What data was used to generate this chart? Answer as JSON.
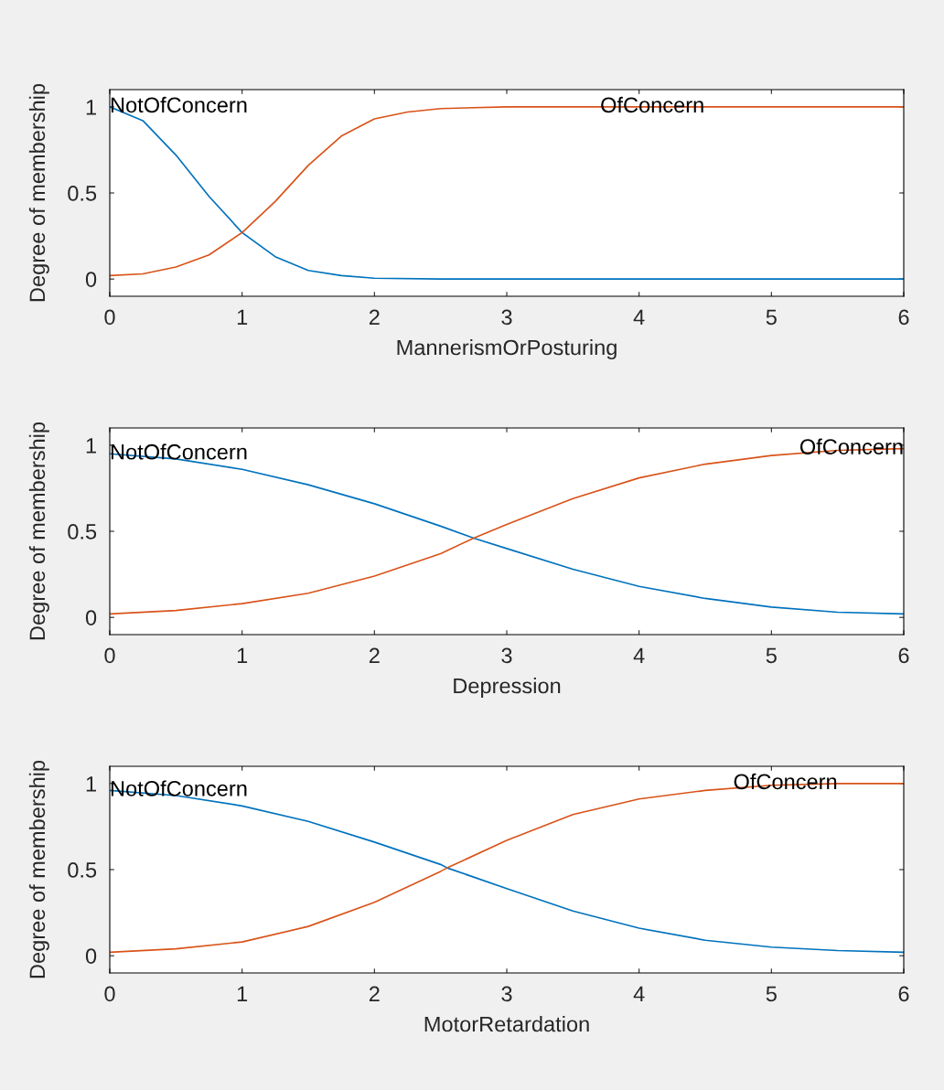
{
  "chart_data": [
    {
      "type": "line",
      "xlabel": "MannerismOrPosturing",
      "ylabel": "Degree of membership",
      "xlim": [
        0,
        6
      ],
      "xticks": [
        0,
        1,
        2,
        3,
        4,
        5,
        6
      ],
      "ylim": [
        -0.1,
        1.1
      ],
      "yticks": [
        0,
        0.5,
        1
      ],
      "grid": false,
      "legend": false,
      "series": [
        {
          "name": "NotOfConcern",
          "color": "#0072bd",
          "x": [
            0,
            0.25,
            0.5,
            0.75,
            1,
            1.25,
            1.5,
            1.75,
            2,
            2.5,
            3,
            4,
            5,
            6
          ],
          "values": [
            1,
            0.92,
            0.72,
            0.48,
            0.27,
            0.13,
            0.05,
            0.02,
            0.005,
            0,
            0,
            0,
            0,
            0
          ]
        },
        {
          "name": "OfConcern",
          "color": "#d95319",
          "x": [
            0,
            0.25,
            0.5,
            0.75,
            1,
            1.25,
            1.5,
            1.75,
            2,
            2.25,
            2.5,
            3,
            4,
            5,
            6
          ],
          "values": [
            0.02,
            0.03,
            0.07,
            0.14,
            0.27,
            0.45,
            0.66,
            0.83,
            0.93,
            0.97,
            0.99,
            1,
            1,
            1,
            1
          ]
        }
      ]
    },
    {
      "type": "line",
      "xlabel": "Depression",
      "ylabel": "Degree of membership",
      "xlim": [
        0,
        6
      ],
      "xticks": [
        0,
        1,
        2,
        3,
        4,
        5,
        6
      ],
      "ylim": [
        -0.1,
        1.1
      ],
      "yticks": [
        0,
        0.5,
        1
      ],
      "grid": false,
      "legend": false,
      "series": [
        {
          "name": "NotOfConcern",
          "color": "#0072bd",
          "x": [
            0,
            0.5,
            1,
            1.5,
            2,
            2.5,
            2.75,
            3,
            3.5,
            4,
            4.5,
            5,
            5.5,
            6
          ],
          "values": [
            0.95,
            0.92,
            0.86,
            0.77,
            0.66,
            0.53,
            0.46,
            0.4,
            0.28,
            0.18,
            0.11,
            0.06,
            0.03,
            0.02
          ]
        },
        {
          "name": "OfConcern",
          "color": "#d95319",
          "x": [
            0,
            0.5,
            1,
            1.5,
            2,
            2.5,
            2.75,
            3,
            3.5,
            4,
            4.5,
            5,
            5.5,
            6
          ],
          "values": [
            0.02,
            0.04,
            0.08,
            0.14,
            0.24,
            0.37,
            0.46,
            0.54,
            0.69,
            0.81,
            0.89,
            0.94,
            0.97,
            0.98
          ]
        }
      ]
    },
    {
      "type": "line",
      "xlabel": "MotorRetardation",
      "ylabel": "Degree of membership",
      "xlim": [
        0,
        6
      ],
      "xticks": [
        0,
        1,
        2,
        3,
        4,
        5,
        6
      ],
      "ylim": [
        -0.1,
        1.1
      ],
      "yticks": [
        0,
        0.5,
        1
      ],
      "grid": false,
      "legend": false,
      "series": [
        {
          "name": "NotOfConcern",
          "color": "#0072bd",
          "x": [
            0,
            0.5,
            1,
            1.5,
            2,
            2.5,
            2.55,
            3,
            3.5,
            4,
            4.5,
            5,
            5.5,
            6
          ],
          "values": [
            0.96,
            0.93,
            0.87,
            0.78,
            0.66,
            0.53,
            0.51,
            0.39,
            0.26,
            0.16,
            0.09,
            0.05,
            0.03,
            0.02
          ]
        },
        {
          "name": "OfConcern",
          "color": "#d95319",
          "x": [
            0,
            0.5,
            1,
            1.5,
            2,
            2.5,
            2.55,
            3,
            3.5,
            4,
            4.5,
            5,
            5.5,
            6
          ],
          "values": [
            0.02,
            0.04,
            0.08,
            0.17,
            0.31,
            0.49,
            0.51,
            0.67,
            0.82,
            0.91,
            0.96,
            0.99,
            1,
            1
          ]
        }
      ]
    }
  ]
}
